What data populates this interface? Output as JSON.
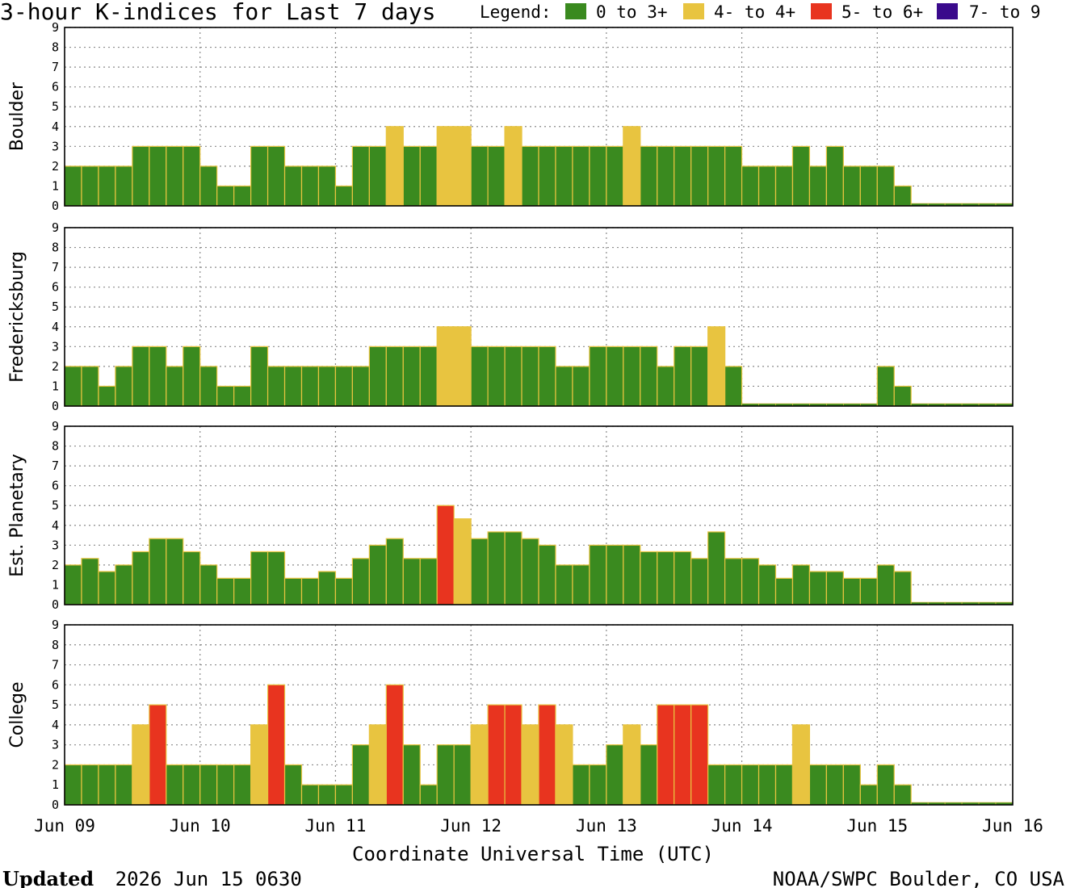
{
  "chart_data": {
    "type": "bar",
    "title": "3-hour K-indices for Last 7 days",
    "legend": {
      "label": "Legend:",
      "entries": [
        {
          "label": "0 to 3+",
          "color": "#3a8a1f"
        },
        {
          "label": "4- to 4+",
          "color": "#e8c440"
        },
        {
          "label": "5- to 6+",
          "color": "#e8341f"
        },
        {
          "label": "7- to 9",
          "color": "#3a0a8c"
        }
      ]
    },
    "x_tick_labels": [
      "Jun 09",
      "Jun 10",
      "Jun 11",
      "Jun 12",
      "Jun 13",
      "Jun 14",
      "Jun 15",
      "Jun 16"
    ],
    "xlabel": "Coordinate Universal Time (UTC)",
    "ylim": [
      0,
      9
    ],
    "y_ticks": [
      0,
      1,
      2,
      3,
      4,
      5,
      6,
      7,
      8,
      9
    ],
    "grid": true,
    "series": [
      {
        "name": "Boulder",
        "values": [
          2,
          2,
          2,
          2,
          3,
          3,
          3,
          3,
          2,
          1,
          1,
          3,
          3,
          2,
          2,
          2,
          1,
          3,
          3,
          4,
          3,
          3,
          4,
          4,
          3,
          3,
          4,
          3,
          3,
          3,
          3,
          3,
          3,
          4,
          3,
          3,
          3,
          3,
          3,
          3,
          2,
          2,
          2,
          3,
          2,
          3,
          2,
          2,
          2,
          1,
          0,
          0,
          0,
          0,
          0,
          0
        ]
      },
      {
        "name": "Fredericksburg",
        "values": [
          2,
          2,
          1,
          2,
          3,
          3,
          2,
          3,
          2,
          1,
          1,
          3,
          2,
          2,
          2,
          2,
          2,
          2,
          3,
          3,
          3,
          3,
          4,
          4,
          3,
          3,
          3,
          3,
          3,
          2,
          2,
          3,
          3,
          3,
          3,
          2,
          3,
          3,
          4,
          2,
          0,
          0,
          0,
          0,
          0,
          0,
          0,
          0,
          2,
          1,
          0,
          0,
          0,
          0,
          0,
          0
        ]
      },
      {
        "name": "Est. Planetary",
        "values": [
          2,
          2.33,
          1.67,
          2,
          2.67,
          3.33,
          3.33,
          2.67,
          2,
          1.33,
          1.33,
          2.67,
          2.67,
          1.33,
          1.33,
          1.67,
          1.33,
          2.33,
          3,
          3.33,
          2.33,
          2.33,
          5,
          4.33,
          3.33,
          3.67,
          3.67,
          3.33,
          3,
          2,
          2,
          3,
          3,
          3,
          2.67,
          2.67,
          2.67,
          2.33,
          3.67,
          2.33,
          2.33,
          2,
          1.33,
          2,
          1.67,
          1.67,
          1.33,
          1.33,
          2,
          1.67,
          0,
          0,
          0,
          0,
          0,
          0
        ]
      },
      {
        "name": "College",
        "values": [
          2,
          2,
          2,
          2,
          4,
          5,
          2,
          2,
          2,
          2,
          2,
          4,
          6,
          2,
          1,
          1,
          1,
          3,
          4,
          6,
          3,
          1,
          3,
          3,
          4,
          5,
          5,
          4,
          5,
          4,
          2,
          2,
          3,
          4,
          3,
          5,
          5,
          5,
          2,
          2,
          2,
          2,
          2,
          4,
          2,
          2,
          2,
          1,
          2,
          1,
          0,
          0,
          0,
          0,
          0,
          0
        ]
      }
    ]
  },
  "footer": {
    "updated_label": "Updated",
    "updated_value": "2026 Jun 15 0630",
    "credit": "NOAA/SWPC Boulder, CO USA"
  }
}
